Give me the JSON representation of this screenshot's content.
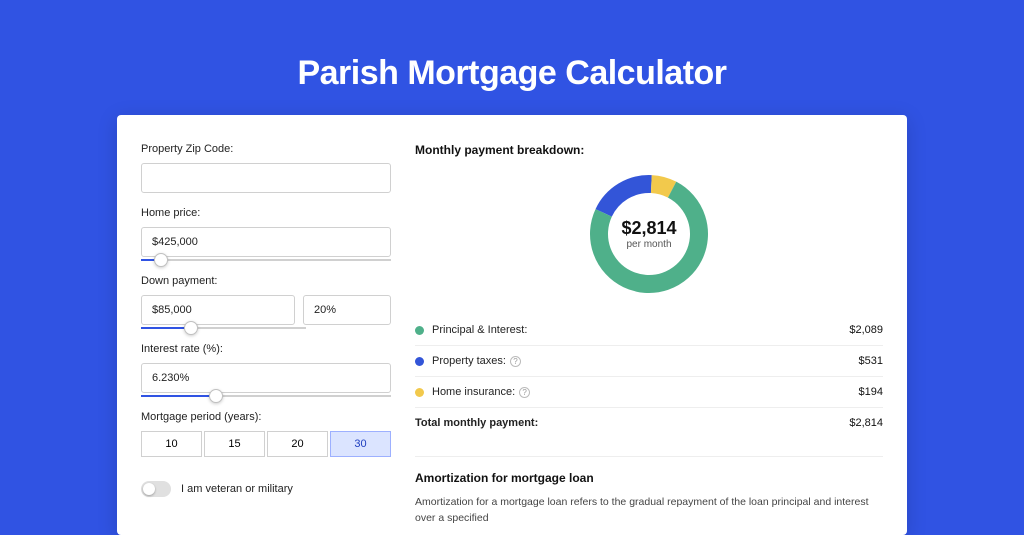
{
  "title": "Parish Mortgage Calculator",
  "colors": {
    "page_bg": "#3053e3",
    "card_bg": "#ffffff",
    "accent": "#3053e3",
    "principal": "#4fb08a",
    "taxes": "#3355d8",
    "insurance": "#f2c94c"
  },
  "form": {
    "zip": {
      "label": "Property Zip Code:",
      "value": ""
    },
    "home_price": {
      "label": "Home price:",
      "value": "$425,000",
      "slider_pct": 8
    },
    "down_payment": {
      "label": "Down payment:",
      "amount": "$85,000",
      "pct": "20%",
      "slider_pct": 20
    },
    "interest": {
      "label": "Interest rate (%):",
      "value": "6.230%",
      "slider_pct": 30
    },
    "period": {
      "label": "Mortgage period (years):",
      "options": [
        "10",
        "15",
        "20",
        "30"
      ],
      "active_index": 3
    },
    "veteran": {
      "label": "I am veteran or military",
      "checked": false
    }
  },
  "breakdown": {
    "title": "Monthly payment breakdown:",
    "center_value": "$2,814",
    "center_sub": "per month",
    "donut": {
      "slices": [
        {
          "color": "#4fb08a",
          "pct": 74.3
        },
        {
          "color": "#3355d8",
          "pct": 18.8
        },
        {
          "color": "#f2c94c",
          "pct": 6.9
        }
      ],
      "stroke_width": 18
    },
    "rows": [
      {
        "dot": "#4fb08a",
        "label": "Principal & Interest:",
        "help": false,
        "value": "$2,089"
      },
      {
        "dot": "#3355d8",
        "label": "Property taxes:",
        "help": true,
        "value": "$531"
      },
      {
        "dot": "#f2c94c",
        "label": "Home insurance:",
        "help": true,
        "value": "$194"
      }
    ],
    "total": {
      "label": "Total monthly payment:",
      "value": "$2,814"
    }
  },
  "amort": {
    "title": "Amortization for mortgage loan",
    "text": "Amortization for a mortgage loan refers to the gradual repayment of the loan principal and interest over a specified"
  }
}
